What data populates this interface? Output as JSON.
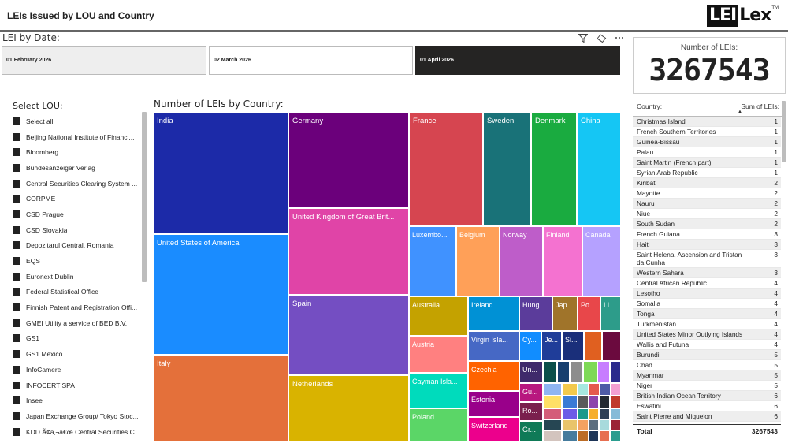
{
  "header": {
    "title": "LEIs Issued by LOU and Country",
    "logo_box": "LEI",
    "logo_rest": "Lex",
    "logo_tm": "TM"
  },
  "date_slicer": {
    "label": "LEI by Date:",
    "icons": [
      "filter-icon",
      "eraser-icon",
      "more-options-icon"
    ],
    "options": [
      "01 February 2026",
      "02 March 2026",
      "01 April 2026"
    ],
    "selected": "01 April 2026"
  },
  "kpi": {
    "label": "Number of LEIs:",
    "value": "3267543"
  },
  "lou_slicer": {
    "title": "Select LOU:",
    "items": [
      "Select all",
      "Beijing National Institute of Financi...",
      "Bloomberg",
      "Bundesanzeiger Verlag",
      "Central Securities Clearing System ...",
      "CORPME",
      "CSD Prague",
      "CSD Slovakia",
      "Depozitarul Central, Romania",
      "EQS",
      "Euronext Dublin",
      "Federal Statistical Office",
      "Finnish Patent and Registration Offi...",
      "GMEI Utility a service of BED B.V.",
      "GS1",
      "GS1 Mexico",
      "InfoCamere",
      "INFOCERT SPA",
      "Insee",
      "Japan Exchange Group/ Tokyo Stoc...",
      "KDD Ã¢â‚¬â€œ Central Securities C..."
    ]
  },
  "treemap": {
    "title": "Number of LEIs by Country:",
    "colors": {
      "india": "#1C2AA8",
      "usa": "#1A8CFF",
      "italy": "#E4703A",
      "germany": "#6B007B",
      "uk": "#E044A7",
      "spain": "#744EC2",
      "netherlands": "#D9B300",
      "france": "#D64550",
      "sweden": "#197278",
      "denmark": "#1AAB40",
      "china": "#15C6F4",
      "luxembourg": "#4092FF",
      "belgium": "#FFA058",
      "norway": "#BE5DC9",
      "finland": "#F472D0",
      "canada": "#B5A1FF",
      "australia": "#C4A200",
      "austria": "#FF8080",
      "cayman": "#00DBBC",
      "poland": "#5BD667",
      "ireland": "#0091D5",
      "virgin": "#4668C5",
      "czechia": "#FF6300",
      "estonia": "#99008A",
      "switzerland": "#EC008C"
    },
    "cells": [
      {
        "label": "India"
      },
      {
        "label": "United States of America"
      },
      {
        "label": "Italy"
      },
      {
        "label": "Germany"
      },
      {
        "label": "United Kingdom of Great Brit..."
      },
      {
        "label": "Spain"
      },
      {
        "label": "Netherlands"
      },
      {
        "label": "France"
      },
      {
        "label": "Sweden"
      },
      {
        "label": "Denmark"
      },
      {
        "label": "China"
      },
      {
        "label": "Luxembo..."
      },
      {
        "label": "Belgium"
      },
      {
        "label": "Norway"
      },
      {
        "label": "Finland"
      },
      {
        "label": "Canada"
      },
      {
        "label": "Australia"
      },
      {
        "label": "Austria"
      },
      {
        "label": "Cayman Isla..."
      },
      {
        "label": "Poland"
      },
      {
        "label": "Ireland"
      },
      {
        "label": "Virgin Isla..."
      },
      {
        "label": "Czechia"
      },
      {
        "label": "Estonia"
      },
      {
        "label": "Switzerland"
      },
      {
        "label": "Hung..."
      },
      {
        "label": "Jap..."
      },
      {
        "label": "Po..."
      },
      {
        "label": "Li..."
      },
      {
        "label": "Cy..."
      },
      {
        "label": "Je..."
      },
      {
        "label": "Si..."
      },
      {
        "label": "Un..."
      },
      {
        "label": "Gu..."
      },
      {
        "label": "Ro..."
      },
      {
        "label": "Gr..."
      }
    ]
  },
  "table": {
    "col_country": "Country:",
    "col_sum": "Sum of LEIs:",
    "rows": [
      {
        "country": "Christmas Island",
        "value": "1"
      },
      {
        "country": "French Southern Territories",
        "value": "1"
      },
      {
        "country": "Guinea-Bissau",
        "value": "1"
      },
      {
        "country": "Palau",
        "value": "1"
      },
      {
        "country": "Saint Martin (French part)",
        "value": "1"
      },
      {
        "country": "Syrian Arab Republic",
        "value": "1"
      },
      {
        "country": "Kiribati",
        "value": "2"
      },
      {
        "country": "Mayotte",
        "value": "2"
      },
      {
        "country": "Nauru",
        "value": "2"
      },
      {
        "country": "Niue",
        "value": "2"
      },
      {
        "country": "South Sudan",
        "value": "2"
      },
      {
        "country": "French Guiana",
        "value": "3"
      },
      {
        "country": "Haiti",
        "value": "3"
      },
      {
        "country": "Saint Helena, Ascension and Tristan da Cunha",
        "value": "3"
      },
      {
        "country": "Western Sahara",
        "value": "3"
      },
      {
        "country": "Central African Republic",
        "value": "4"
      },
      {
        "country": "Lesotho",
        "value": "4"
      },
      {
        "country": "Somalia",
        "value": "4"
      },
      {
        "country": "Tonga",
        "value": "4"
      },
      {
        "country": "Turkmenistan",
        "value": "4"
      },
      {
        "country": "United States Minor Outlying Islands",
        "value": "4"
      },
      {
        "country": "Wallis and Futuna",
        "value": "4"
      },
      {
        "country": "Burundi",
        "value": "5"
      },
      {
        "country": "Chad",
        "value": "5"
      },
      {
        "country": "Myanmar",
        "value": "5"
      },
      {
        "country": "Niger",
        "value": "5"
      },
      {
        "country": "British Indian Ocean Territory",
        "value": "6"
      },
      {
        "country": "Eswatini",
        "value": "6"
      },
      {
        "country": "Saint Pierre and Miquelon",
        "value": "6"
      }
    ],
    "total_label": "Total",
    "total_value": "3267543"
  }
}
